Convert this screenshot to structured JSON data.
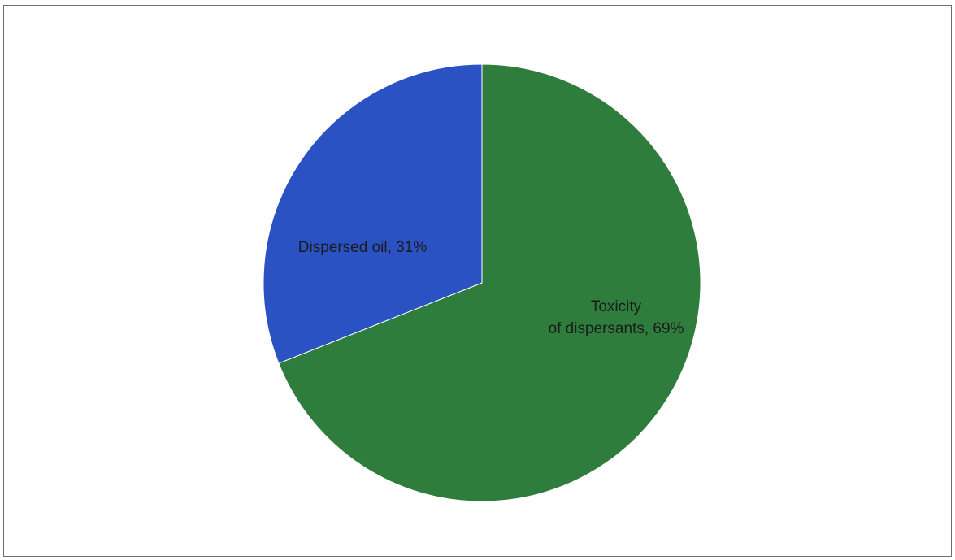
{
  "chart_data": {
    "type": "pie",
    "title": "",
    "slices": [
      {
        "label": "Toxicity of dispersants",
        "value": 69,
        "display": "69%",
        "color": "#2e7d3c"
      },
      {
        "label": "Dispersed oil",
        "value": 31,
        "display": "31%",
        "color": "#2b52c2"
      }
    ],
    "start_angle": "12 o'clock",
    "direction": "clockwise",
    "legend": "none",
    "data_labels": "category name and percentage"
  }
}
